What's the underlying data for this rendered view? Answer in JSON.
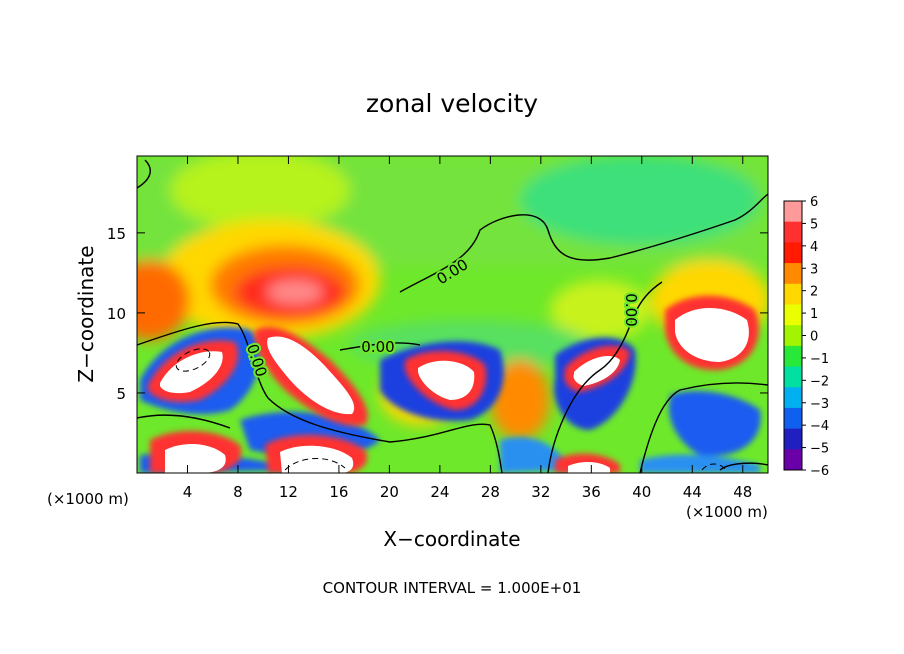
{
  "chart_data": {
    "type": "heatmap",
    "title": "zonal velocity",
    "xlabel": "X−coordinate",
    "ylabel": "Z−coordinate",
    "x_unit_left": "(×1000 m)",
    "x_unit_right": "(×1000 m)",
    "footer": "CONTOUR INTERVAL = 1.000E+01",
    "xlim": [
      0,
      50
    ],
    "ylim": [
      0,
      19.8
    ],
    "x_ticks": [
      4,
      8,
      12,
      16,
      20,
      24,
      28,
      32,
      36,
      40,
      44,
      48
    ],
    "y_ticks": [
      5,
      10,
      15
    ],
    "colorbar": {
      "ticks": [
        "6",
        "5",
        "4",
        "3",
        "2",
        "1",
        "0",
        "−1",
        "−2",
        "−3",
        "−4",
        "−5",
        "−6"
      ],
      "colors": [
        "#ff9a9a",
        "#ff3030",
        "#ff1a00",
        "#ff8a00",
        "#ffd800",
        "#eaff00",
        "#a2f400",
        "#28e83a",
        "#00e0a0",
        "#00b0f0",
        "#1060f0",
        "#2020c0",
        "#6a00a8"
      ]
    },
    "contour_labels": [
      "0.00",
      "0.00",
      "0.00",
      "0.00"
    ],
    "grid": false,
    "legend": "right (colorbar)"
  }
}
